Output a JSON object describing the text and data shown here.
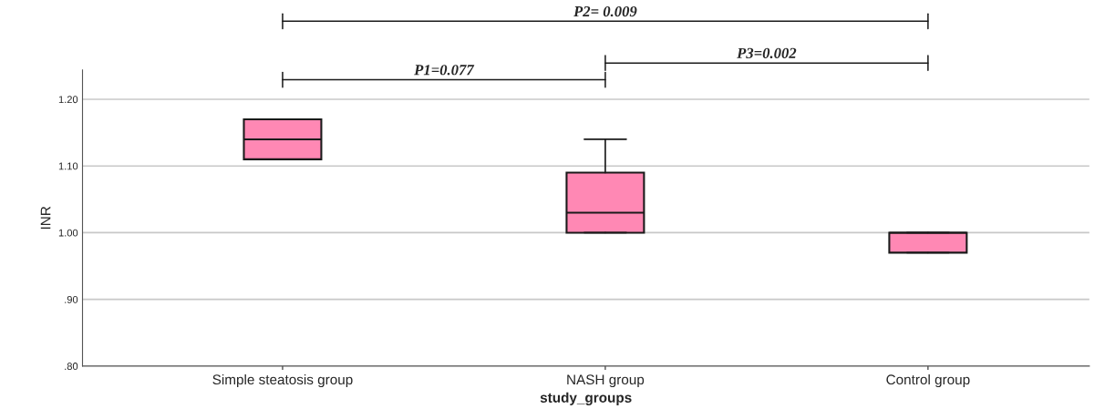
{
  "chart_data": {
    "type": "box",
    "xlabel": "study_groups",
    "ylabel": "INR",
    "categories": [
      "Simple steatosis group",
      "NASH group",
      "Control group"
    ],
    "boxes": [
      {
        "low": 1.11,
        "q1": 1.11,
        "median": 1.14,
        "q3": 1.17,
        "high": 1.17
      },
      {
        "low": 1.0,
        "q1": 1.0,
        "median": 1.03,
        "q3": 1.09,
        "high": 1.14
      },
      {
        "low": 0.97,
        "q1": 0.97,
        "median": 1.0,
        "q3": 1.0,
        "high": 1.0
      }
    ],
    "color": "#ff88b4",
    "ylim": [
      0.8,
      1.244
    ],
    "yticks": [
      {
        "value": 0.8,
        "label": ".80"
      },
      {
        "value": 0.9,
        "label": ".90"
      },
      {
        "value": 1.0,
        "label": "1.00"
      },
      {
        "value": 1.1,
        "label": "1.10"
      },
      {
        "value": 1.2,
        "label": "1.20"
      }
    ],
    "grid": "y",
    "annotations": [
      "P1=0.077",
      "P2= 0.009",
      "P3=0.002"
    ]
  }
}
